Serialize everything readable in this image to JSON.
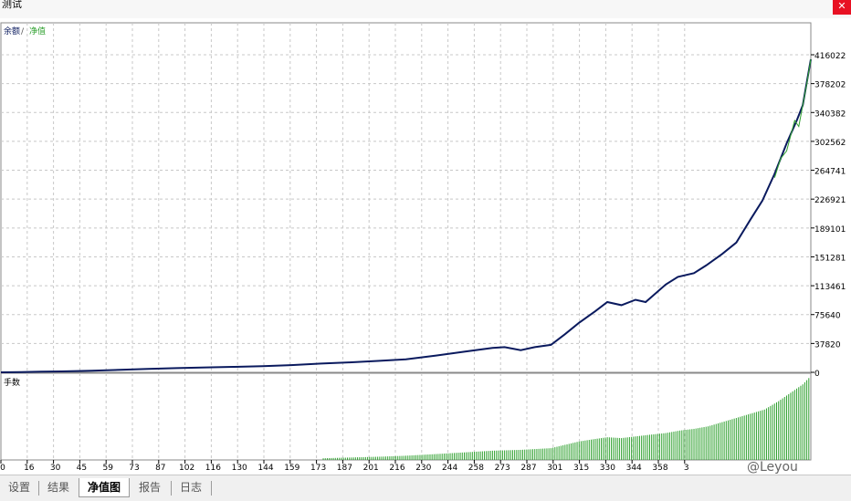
{
  "window": {
    "title": "测试",
    "close_glyph": "✕"
  },
  "legend": {
    "balance": "余额",
    "separator": "/",
    "equity": "净值"
  },
  "lots_label": "手数",
  "tabs": [
    {
      "label": "设置",
      "active": false
    },
    {
      "label": "结果",
      "active": false
    },
    {
      "label": "净值图",
      "active": true
    },
    {
      "label": "报告",
      "active": false
    },
    {
      "label": "日志",
      "active": false
    }
  ],
  "watermark": "@Leyou",
  "colors": {
    "balance": "#0a1a5e",
    "equity": "#2ea02e",
    "grid": "#c8c8c8",
    "lots": "#2ea02e"
  },
  "chart_data": {
    "type": "line",
    "title": "",
    "x_ticks": [
      "0",
      "16",
      "30",
      "45",
      "59",
      "73",
      "87",
      "102",
      "116",
      "130",
      "144",
      "159",
      "173",
      "187",
      "201",
      "216",
      "230",
      "244",
      "258",
      "273",
      "287",
      "301",
      "315",
      "330",
      "344",
      "358",
      "3"
    ],
    "y_ticks": [
      "416022",
      "378202",
      "340382",
      "302562",
      "264741",
      "226921",
      "189101",
      "151281",
      "113461",
      "75640",
      "37820",
      "0"
    ],
    "ylim": [
      0,
      416022
    ],
    "xlim": [
      0,
      402
    ],
    "series": [
      {
        "name": "余额",
        "x": [
          0,
          10,
          20,
          30,
          45,
          59,
          73,
          87,
          102,
          116,
          130,
          144,
          159,
          173,
          187,
          201,
          216,
          230,
          244,
          250,
          258,
          265,
          273,
          280,
          287,
          295,
          301,
          308,
          315,
          320,
          330,
          336,
          344,
          350,
          358,
          365,
          372,
          378,
          384,
          390,
          395,
          398,
          400,
          402
        ],
        "y": [
          0,
          300,
          800,
          1200,
          2000,
          3200,
          4500,
          5500,
          6500,
          7200,
          8000,
          9500,
          11500,
          13000,
          15000,
          17000,
          22000,
          27000,
          32000,
          33000,
          29000,
          33000,
          36000,
          50000,
          65000,
          80000,
          92000,
          88000,
          95000,
          92000,
          115000,
          125000,
          130000,
          140000,
          155000,
          170000,
          200000,
          225000,
          260000,
          300000,
          330000,
          350000,
          380000,
          410000
        ]
      },
      {
        "name": "净值",
        "x": [
          384,
          387,
          390,
          392,
          394,
          396,
          398,
          400,
          402
        ],
        "y": [
          255000,
          280000,
          290000,
          310000,
          330000,
          322000,
          350000,
          378000,
          410000
        ]
      }
    ],
    "lots": {
      "label": "手数",
      "x": [
        160,
        175,
        190,
        201,
        216,
        230,
        244,
        258,
        273,
        280,
        287,
        295,
        301,
        308,
        315,
        322,
        330,
        337,
        344,
        351,
        358,
        365,
        372,
        379,
        386,
        392,
        398,
        402
      ],
      "values": [
        2,
        3,
        4,
        5,
        7,
        9,
        11,
        12,
        14,
        18,
        22,
        25,
        27,
        26,
        28,
        30,
        32,
        35,
        37,
        40,
        45,
        50,
        55,
        60,
        70,
        80,
        90,
        100
      ]
    }
  }
}
